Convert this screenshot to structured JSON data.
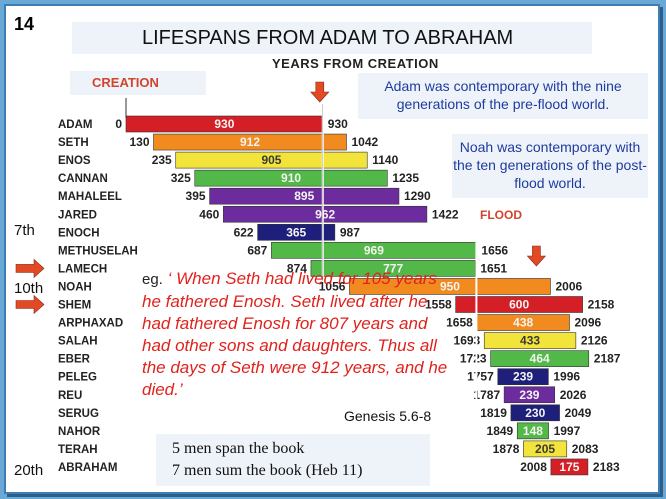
{
  "slide_number": "14",
  "title": "LIFESPANS FROM ADAM TO ABRAHAM",
  "years_label": "YEARS FROM CREATION",
  "creation_label": "CREATION",
  "flood_label": "FLOOD",
  "note_adam": "Adam was contemporary with the nine generations of the pre-flood world.",
  "note_noah": "Noah was contemporary with the ten generations of the post-flood world.",
  "quote": {
    "prefix": "eg.",
    "text": "When Seth had lived for 105 years he fathered Enosh. Seth lived after he had fathered Enosh for 807 years and had other sons and daughters. Thus all the days of Seth were 912 years, and he died."
  },
  "genesis_ref": "Genesis 5.6-8",
  "span_box": {
    "line1": "5 men span the book",
    "line2": "7 men sum the book  (Heb 11)"
  },
  "generation_markers": [
    "7th",
    "10th",
    "20th"
  ],
  "colors": {
    "red": "#d41f27",
    "orange": "#f28b1f",
    "yellow": "#f2e43a",
    "green": "#52b848",
    "purple": "#6d2c9d",
    "navy": "#1e1f7a",
    "accent": "#d2452d",
    "arrow": "#e24a26"
  },
  "chart_data": {
    "type": "bar",
    "orientation": "horizontal-range",
    "xlabel": "YEARS FROM CREATION",
    "x_range": [
      0,
      2183
    ],
    "flood_year": 1656,
    "series": [
      {
        "name": "ADAM",
        "start": 0,
        "end": 930,
        "lifespan": 930,
        "color": "red"
      },
      {
        "name": "SETH",
        "start": 130,
        "end": 1042,
        "lifespan": 912,
        "color": "orange"
      },
      {
        "name": "ENOS",
        "start": 235,
        "end": 1140,
        "lifespan": 905,
        "color": "yellow"
      },
      {
        "name": "CANNAN",
        "start": 325,
        "end": 1235,
        "lifespan": 910,
        "color": "green"
      },
      {
        "name": "MAHALEEL",
        "start": 395,
        "end": 1290,
        "lifespan": 895,
        "color": "purple"
      },
      {
        "name": "JARED",
        "start": 460,
        "end": 1422,
        "lifespan": 962,
        "color": "purple"
      },
      {
        "name": "ENOCH",
        "start": 622,
        "end": 987,
        "lifespan": 365,
        "color": "navy"
      },
      {
        "name": "METHUSELAH",
        "start": 687,
        "end": 1656,
        "lifespan": 969,
        "color": "green"
      },
      {
        "name": "LAMECH",
        "start": 874,
        "end": 1651,
        "lifespan": 777,
        "color": "green"
      },
      {
        "name": "NOAH",
        "start": 1056,
        "end": 2006,
        "lifespan": 950,
        "color": "orange"
      },
      {
        "name": "SHEM",
        "start": 1558,
        "end": 2158,
        "lifespan": 600,
        "color": "red"
      },
      {
        "name": "ARPHAXAD",
        "start": 1658,
        "end": 2096,
        "lifespan": 438,
        "color": "orange"
      },
      {
        "name": "SALAH",
        "start": 1693,
        "end": 2126,
        "lifespan": 433,
        "color": "yellow"
      },
      {
        "name": "EBER",
        "start": 1723,
        "end": 2187,
        "lifespan": 464,
        "color": "green"
      },
      {
        "name": "PELEG",
        "start": 1757,
        "end": 1996,
        "lifespan": 239,
        "color": "navy"
      },
      {
        "name": "REU",
        "start": 1787,
        "end": 2026,
        "lifespan": 239,
        "color": "purple"
      },
      {
        "name": "SERUG",
        "start": 1819,
        "end": 2049,
        "lifespan": 230,
        "color": "navy"
      },
      {
        "name": "NAHOR",
        "start": 1849,
        "end": 1997,
        "lifespan": 148,
        "color": "green"
      },
      {
        "name": "TERAH",
        "start": 1878,
        "end": 2083,
        "lifespan": 205,
        "color": "yellow"
      },
      {
        "name": "ABRAHAM",
        "start": 2008,
        "end": 2183,
        "lifespan": 175,
        "color": "red"
      }
    ]
  }
}
